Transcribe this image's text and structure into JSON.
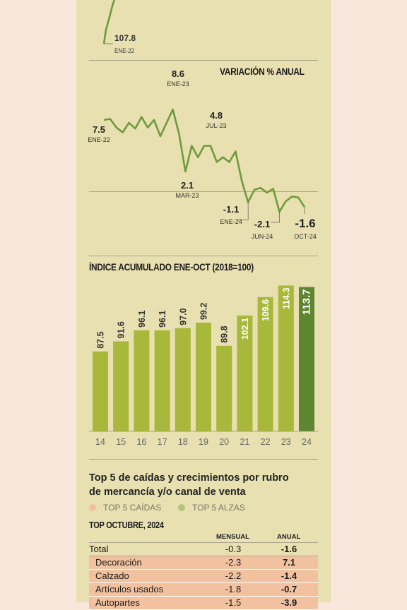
{
  "colors": {
    "background": "#f8e7da",
    "panel": "#e8e0b0",
    "line": "#6f9a3c",
    "bar": "#a8b83a",
    "bar_highlight": "#5e8530",
    "falls": "#f2c2a0",
    "rises": "#b8c27a"
  },
  "chart_data": [
    {
      "type": "line",
      "annotations": [
        {
          "label": "107.8",
          "sublabel": "ENE-22"
        }
      ]
    },
    {
      "type": "line",
      "title": "VARIACIÓN % ANUAL",
      "reference_line": 0,
      "ylim": [
        -3,
        10
      ],
      "series": [
        {
          "values": [
            7.5,
            7.6,
            6.7,
            6.2,
            7.2,
            6.6,
            7.8,
            6.7,
            7.5,
            5.8,
            7.2,
            8.6,
            6.0,
            2.1,
            4.8,
            3.6,
            4.8,
            4.8,
            3.1,
            3.6,
            3.1,
            4.2,
            1.1,
            -1.1,
            0.2,
            0.4,
            -0.1,
            0.3,
            -2.1,
            -1.0,
            -0.5,
            -0.6,
            -1.6
          ]
        }
      ],
      "annotations": [
        {
          "label": "7.5",
          "sublabel": "ENE-22"
        },
        {
          "label": "8.6",
          "sublabel": "ENE-23"
        },
        {
          "label": "2.1",
          "sublabel": "MAR-23"
        },
        {
          "label": "4.8",
          "sublabel": "JUL-23"
        },
        {
          "label": "-1.1",
          "sublabel": "ENE-24"
        },
        {
          "label": "-2.1",
          "sublabel": "JUN-24"
        },
        {
          "label": "-1.6",
          "sublabel": "OCT-24"
        }
      ]
    },
    {
      "type": "bar",
      "title": "ÍNDICE ACUMULADO ENE-OCT (2018=100)",
      "categories": [
        "14",
        "15",
        "16",
        "17",
        "18",
        "19",
        "20",
        "21",
        "22",
        "23",
        "24"
      ],
      "values": [
        87.5,
        91.6,
        96.1,
        96.1,
        97.0,
        99.2,
        89.8,
        102.1,
        109.6,
        114.3,
        113.7
      ],
      "value_labels": [
        "87.5",
        "91.6",
        "96.1",
        "96.1",
        "97.0",
        "99.2",
        "89.8",
        "102.1",
        "109.6",
        "114.3",
        "113.7"
      ],
      "ylim": [
        55,
        115
      ]
    }
  ],
  "top5": {
    "title_line1": "Top 5 de caídas y crecimientos por rubro",
    "title_line2": "de mercancía y/o canal de venta",
    "legend_falls": "TOP 5 CAÍDAS",
    "legend_rises": "TOP 5 ALZAS",
    "subtitle": "TOP OCTUBRE, 2024",
    "col_monthly": "MENSUAL",
    "col_annual": "ANUAL",
    "rows": [
      {
        "label": "Total",
        "monthly": "-0.3",
        "annual": "-1.6",
        "group": "total"
      },
      {
        "label": "Decoración",
        "monthly": "-2.3",
        "annual": "7.1",
        "group": "fall"
      },
      {
        "label": "Calzado",
        "monthly": "-2.2",
        "annual": "-1.4",
        "group": "fall"
      },
      {
        "label": "Artículos usados",
        "monthly": "-1.8",
        "annual": "-0.7",
        "group": "fall"
      },
      {
        "label": "Autopartes",
        "monthly": "-1.5",
        "annual": "-3.9",
        "group": "fall"
      }
    ]
  }
}
